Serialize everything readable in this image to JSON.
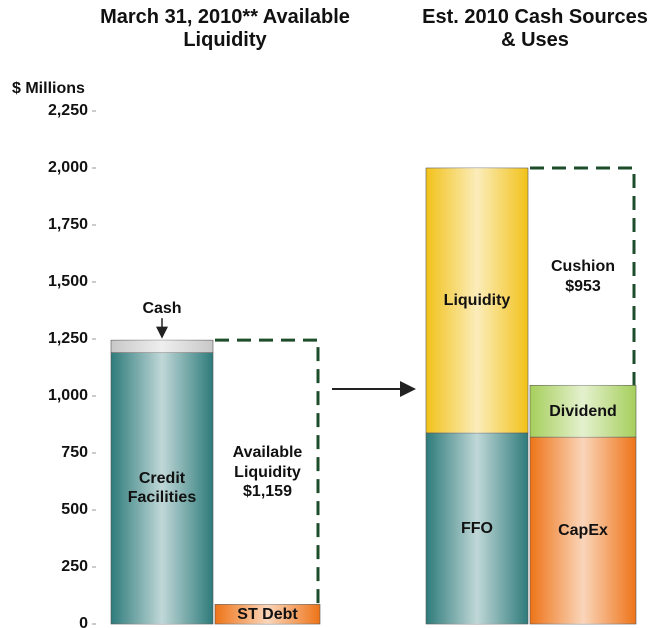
{
  "chart_data": {
    "type": "stacked_bar",
    "group_titles": [
      "March 31, 2010** Available Liquidity",
      "Est. 2010 Cash Sources & Uses"
    ],
    "y_label": "$ Millions",
    "categories": [
      null,
      null,
      null,
      null
    ],
    "ylim": [
      0,
      2250
    ],
    "yticks": [
      0,
      250,
      500,
      750,
      {
        "value": 1000,
        "label": "1,000"
      },
      {
        "value": 1250,
        "label": "1,250"
      },
      {
        "value": 1500,
        "label": "1,500"
      },
      {
        "value": 1750,
        "label": "1,750"
      },
      {
        "value": 2000,
        "label": "2,000"
      },
      {
        "value": 2250,
        "label": "2,250"
      }
    ],
    "series": [
      {
        "name": "Credit Facilities",
        "color": "#2e7b7b",
        "values": [
          1190,
          null,
          null,
          null
        ]
      },
      {
        "name": "Cash",
        "color": "#c8c8c8",
        "values": [
          55,
          null,
          null,
          null
        ]
      },
      {
        "name": "ST Debt",
        "color": "#ee7418",
        "values": [
          null,
          86,
          null,
          null
        ]
      },
      {
        "name": "Available Liquidity",
        "color": "#1e4d2b",
        "dashed": true,
        "values": [
          null,
          1159,
          null,
          null
        ],
        "value_labels": [
          null,
          "$1,159",
          null,
          null
        ]
      },
      {
        "name": "FFO",
        "color": "#2e7b7b",
        "values": [
          null,
          null,
          838,
          null
        ]
      },
      {
        "name": "Liquidity",
        "color": "#f2c21a",
        "values": [
          null,
          null,
          1162,
          null
        ]
      },
      {
        "name": "CapEx",
        "color": "#ee7418",
        "values": [
          null,
          null,
          null,
          820
        ]
      },
      {
        "name": "Dividend",
        "color": "#a6cf5c",
        "values": [
          null,
          null,
          null,
          227
        ]
      },
      {
        "name": "Cushion",
        "color": "#1e4d2b",
        "dashed": true,
        "values": [
          null,
          null,
          null,
          953
        ],
        "value_labels": [
          null,
          null,
          null,
          "$953"
        ]
      }
    ]
  }
}
